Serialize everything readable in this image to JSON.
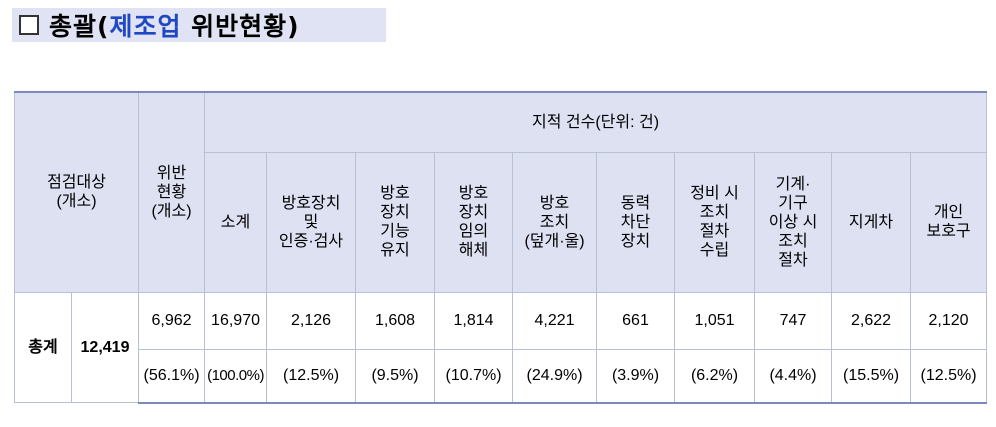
{
  "title": {
    "checkbox": "□",
    "prefix": "총괄(",
    "highlight": "제조업",
    "suffix": " 위반현황)"
  },
  "table": {
    "col_target": "점검대상\n(개소)",
    "col_violation": "위반\n현황\n(개소)",
    "group_header": "지적 건수(단위: 건)",
    "sub_headers": [
      "소계",
      "방호장치\n및\n인증·검사",
      "방호\n장치\n기능\n유지",
      "방호\n장치\n임의\n해체",
      "방호\n조치\n(덮개·울)",
      "동력\n차단\n장치",
      "정비 시\n조치\n절차\n수립",
      "기계·\n기구\n이상 시\n조치\n절차",
      "지게차",
      "개인\n보호구"
    ],
    "row_label": "총계",
    "target_count": "12,419",
    "violation_count": "6,962",
    "violation_pct": "(56.1%)",
    "counts": [
      "16,970",
      "2,126",
      "1,608",
      "1,814",
      "4,221",
      "661",
      "1,051",
      "747",
      "2,622",
      "2,120"
    ],
    "pcts": [
      "(100.0%)",
      "(12.5%)",
      "(9.5%)",
      "(10.7%)",
      "(24.9%)",
      "(3.9%)",
      "(6.2%)",
      "(4.4%)",
      "(15.5%)",
      "(12.5%)"
    ]
  }
}
